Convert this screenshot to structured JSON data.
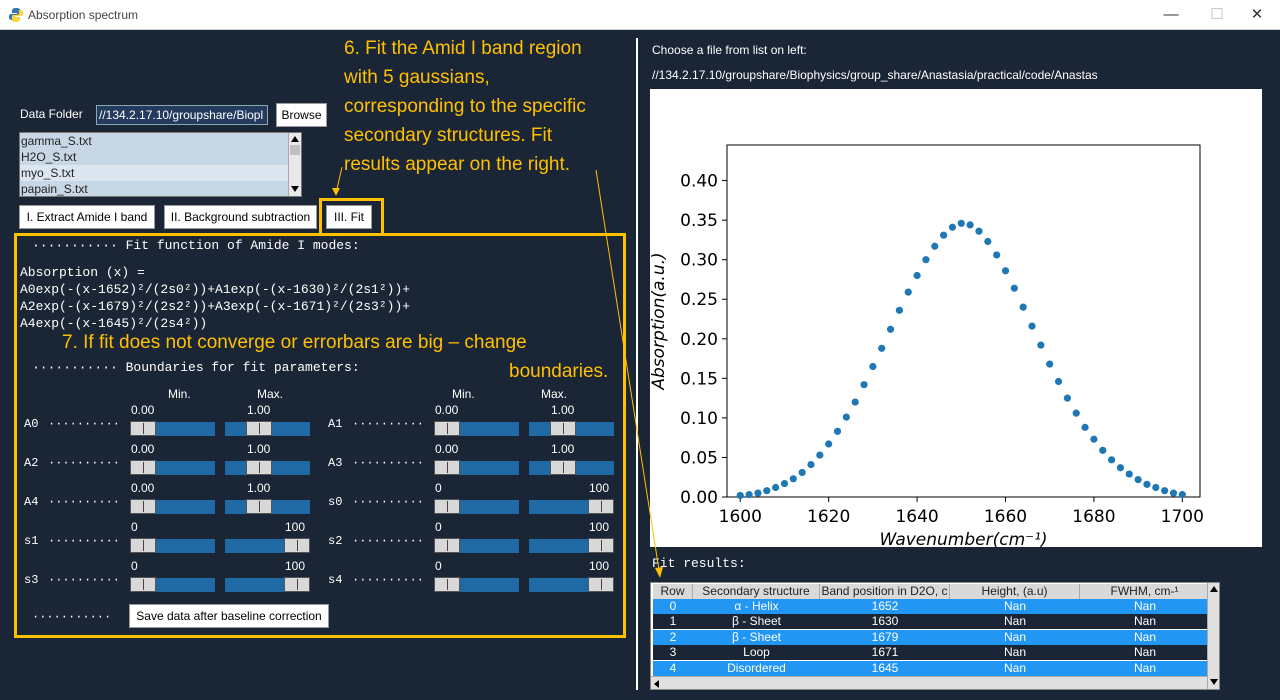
{
  "window": {
    "title": "Absorption spectrum"
  },
  "left": {
    "data_folder_label": "Data Folder",
    "data_folder_value": "//134.2.17.10/groupshare/Biopl",
    "browse_label": "Browse",
    "files": [
      "gamma_S.txt",
      "H2O_S.txt",
      "myo_S.txt",
      "papain_S.txt"
    ],
    "selected_file": "myo_S.txt",
    "steps": [
      "I. Extract Amide I band",
      "II. Background subtraction",
      "III. Fit"
    ],
    "fit_function_header": "··········· Fit function of Amide I modes:",
    "formula_lines": [
      "Absorption (x) =",
      "A0exp(-(x-1652)²/(2s0²))+A1exp(-(x-1630)²/(2s1²))+",
      "A2exp(-(x-1679)²/(2s2²))+A3exp(-(x-1671)²/(2s3²))+",
      "A4exp(-(x-1645)²/(2s4²))"
    ],
    "boundaries_header": "··········· Boundaries for fit parameters:",
    "min_label": "Min.",
    "max_label": "Max.",
    "params": [
      {
        "name": "A0",
        "dots": "··········",
        "min": "0.00",
        "max": "1.00",
        "min_frac": 0.0,
        "max_frac": 0.35
      },
      {
        "name": "A1",
        "dots": "··········",
        "min": "0.00",
        "max": "1.00",
        "min_frac": 0.0,
        "max_frac": 0.35
      },
      {
        "name": "A2",
        "dots": "··········",
        "min": "0.00",
        "max": "1.00",
        "min_frac": 0.0,
        "max_frac": 0.35
      },
      {
        "name": "A3",
        "dots": "··········",
        "min": "0.00",
        "max": "1.00",
        "min_frac": 0.0,
        "max_frac": 0.35
      },
      {
        "name": "A4",
        "dots": "··········",
        "min": "0.00",
        "max": "1.00",
        "min_frac": 0.0,
        "max_frac": 0.35
      },
      {
        "name": "s0",
        "dots": "··········",
        "min": "0",
        "max": "100",
        "min_frac": 0.0,
        "max_frac": 1.0
      },
      {
        "name": "s1",
        "dots": "··········",
        "min": "0",
        "max": "100",
        "min_frac": 0.0,
        "max_frac": 1.0
      },
      {
        "name": "s2",
        "dots": "··········",
        "min": "0",
        "max": "100",
        "min_frac": 0.0,
        "max_frac": 1.0
      },
      {
        "name": "s3",
        "dots": "··········",
        "min": "0",
        "max": "100",
        "min_frac": 0.0,
        "max_frac": 1.0
      },
      {
        "name": "s4",
        "dots": "··········",
        "min": "0",
        "max": "100",
        "min_frac": 0.0,
        "max_frac": 1.0
      }
    ],
    "save_dots": "···········",
    "save_label": "Save data after baseline correction"
  },
  "annotations": {
    "step6": [
      "6. Fit the Amid I band region",
      "with 5 gaussians,",
      "corresponding to the specific",
      "secondary structures. Fit",
      "results appear on the right."
    ],
    "step7_line1": "7. If fit does not converge or errorbars are big – change",
    "step7_line2": "boundaries."
  },
  "right": {
    "choose_label": "Choose a file from list on left:",
    "path": "//134.2.17.10/groupshare/Biophysics/group_share/Anastasia/practical/code/Anastas",
    "fit_results_label": "Fit results:",
    "table": {
      "headers": [
        "Row",
        "Secondary structure",
        "Band position in D2O, c",
        "Height, (a.u)",
        "FWHM, cm-¹"
      ],
      "rows": [
        [
          "0",
          "α - Helix",
          "1652",
          "Nan",
          "Nan"
        ],
        [
          "1",
          "β - Sheet",
          "1630",
          "Nan",
          "Nan"
        ],
        [
          "2",
          "β - Sheet",
          "1679",
          "Nan",
          "Nan"
        ],
        [
          "3",
          "Loop",
          "1671",
          "Nan",
          "Nan"
        ],
        [
          "4",
          "Disordered",
          "1645",
          "Nan",
          "Nan"
        ]
      ]
    }
  },
  "chart_data": {
    "type": "scatter",
    "title": "",
    "xlabel": "Wavenumber(cm⁻¹)",
    "ylabel": "Absorption(a.u.)",
    "xlim": [
      1597,
      1704
    ],
    "ylim": [
      0.0,
      0.445
    ],
    "xticks": [
      1600,
      1620,
      1640,
      1660,
      1680,
      1700
    ],
    "yticks": [
      0.0,
      0.05,
      0.1,
      0.15,
      0.2,
      0.25,
      0.3,
      0.35,
      0.4
    ],
    "xtick_labels": [
      "1600",
      "1620",
      "1640",
      "1660",
      "1680",
      "1700"
    ],
    "ytick_labels": [
      "0.00",
      "0.05",
      "0.10",
      "0.15",
      "0.20",
      "0.25",
      "0.30",
      "0.35",
      "0.40"
    ],
    "x": [
      1600,
      1602,
      1604,
      1606,
      1608,
      1610,
      1612,
      1614,
      1616,
      1618,
      1620,
      1622,
      1624,
      1626,
      1628,
      1630,
      1632,
      1634,
      1636,
      1638,
      1640,
      1642,
      1644,
      1646,
      1648,
      1650,
      1652,
      1654,
      1656,
      1658,
      1660,
      1662,
      1664,
      1666,
      1668,
      1670,
      1672,
      1674,
      1676,
      1678,
      1680,
      1682,
      1684,
      1686,
      1688,
      1690,
      1692,
      1694,
      1696,
      1698,
      1700
    ],
    "y": [
      0.002,
      0.003,
      0.005,
      0.008,
      0.012,
      0.017,
      0.023,
      0.031,
      0.041,
      0.053,
      0.067,
      0.083,
      0.101,
      0.12,
      0.142,
      0.165,
      0.188,
      0.212,
      0.236,
      0.259,
      0.28,
      0.3,
      0.317,
      0.331,
      0.341,
      0.346,
      0.344,
      0.336,
      0.323,
      0.306,
      0.286,
      0.264,
      0.24,
      0.216,
      0.192,
      0.168,
      0.146,
      0.125,
      0.106,
      0.088,
      0.073,
      0.059,
      0.047,
      0.037,
      0.029,
      0.022,
      0.016,
      0.012,
      0.008,
      0.005,
      0.003
    ],
    "color": "#1f77b4"
  }
}
